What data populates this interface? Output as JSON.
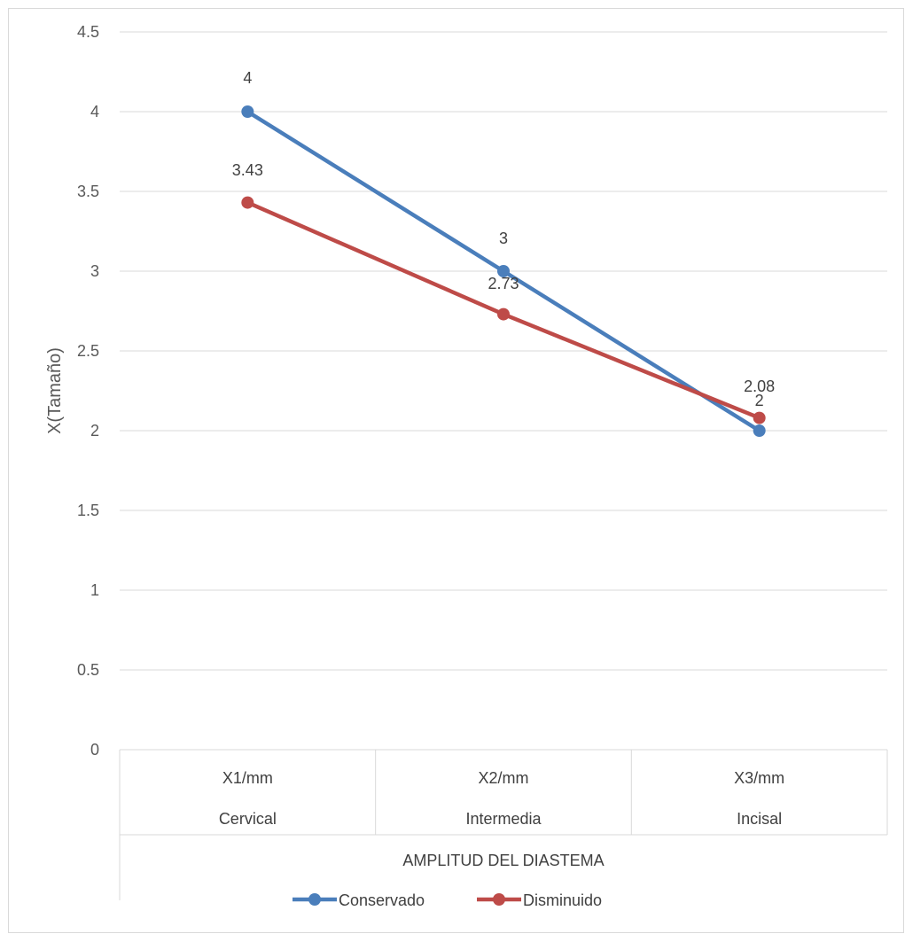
{
  "chart_data": {
    "type": "line",
    "categories": [
      {
        "x1": "X1/mm",
        "x2": "Cervical"
      },
      {
        "x1": "X2/mm",
        "x2": "Intermedia"
      },
      {
        "x1": "X3/mm",
        "x2": "Incisal"
      }
    ],
    "group_label": "AMPLITUD DEL DIASTEMA",
    "ylabel": "X(Tamaño)",
    "ylim": [
      0,
      4.5
    ],
    "yticks": [
      "0",
      "0.5",
      "1",
      "1.5",
      "2",
      "2.5",
      "3",
      "3.5",
      "4",
      "4.5"
    ],
    "grid": true,
    "legend_position": "bottom",
    "series": [
      {
        "name": "Conservado",
        "color": "#4a7ebb",
        "values": [
          4,
          3,
          2
        ],
        "labels": [
          "4",
          "3",
          "2"
        ]
      },
      {
        "name": "Disminuido",
        "color": "#be4b48",
        "values": [
          3.43,
          2.73,
          2.08
        ],
        "labels": [
          "3.43",
          "2.73",
          "2.08"
        ]
      }
    ]
  }
}
